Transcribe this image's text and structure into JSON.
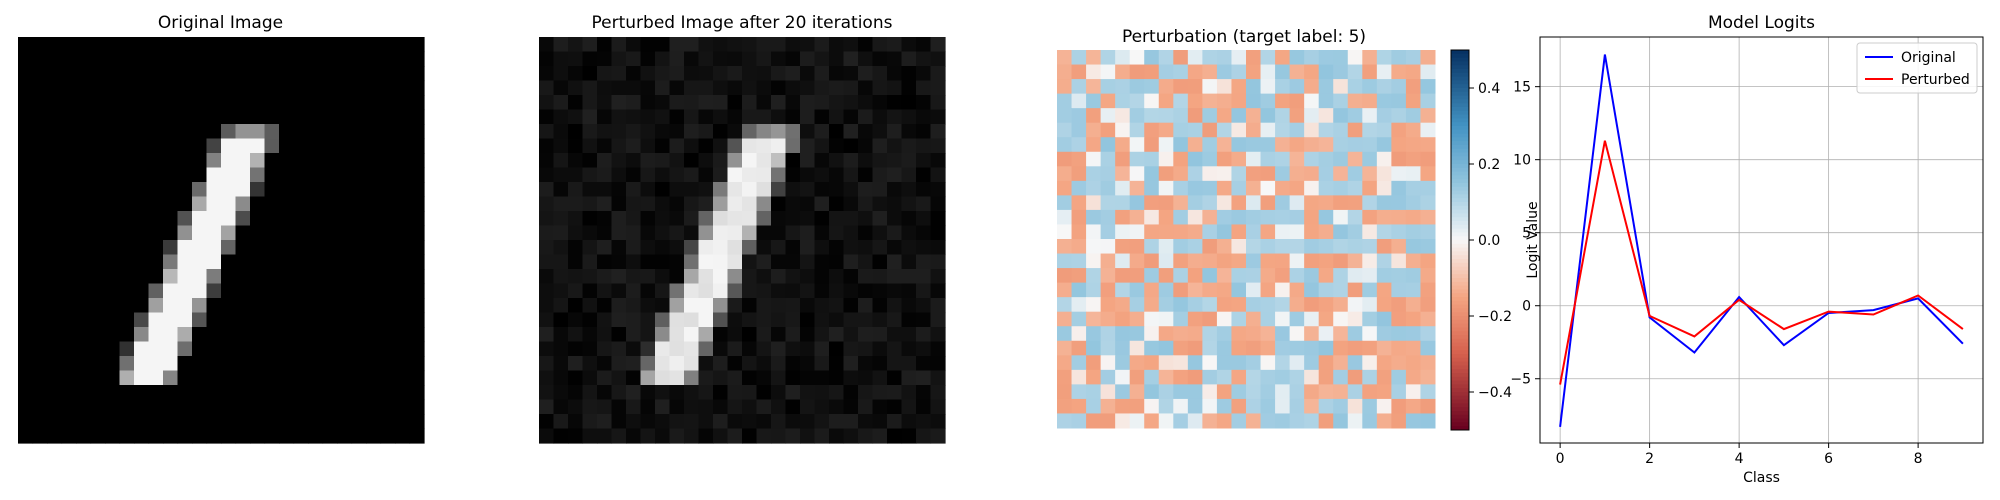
{
  "panels": {
    "original": {
      "title": "Original Image"
    },
    "perturbed": {
      "title": "Perturbed Image after 20 iterations"
    },
    "perturbation": {
      "title": "Perturbation (target label: 5)"
    },
    "logits": {
      "title": "Model Logits"
    }
  },
  "chart_data": [
    {
      "type": "heatmap",
      "title": "Original Image",
      "grid_size": [
        28,
        28
      ],
      "colormap": "gray",
      "content": "handwritten digit 1"
    },
    {
      "type": "heatmap",
      "title": "Perturbed Image after 20 iterations",
      "grid_size": [
        28,
        28
      ],
      "colormap": "gray",
      "content": "handwritten digit 1 with small noise"
    },
    {
      "type": "heatmap",
      "title": "Perturbation (target label: 5)",
      "grid_size": [
        26,
        26
      ],
      "colormap": "RdBu",
      "colorbar": {
        "range": [
          -0.5,
          0.5
        ],
        "ticks": [
          0.4,
          0.2,
          0.0,
          -0.2,
          -0.4
        ],
        "tick_labels": [
          "0.4",
          "0.2",
          "0.0",
          "−0.2",
          "−0.4"
        ]
      }
    },
    {
      "type": "line",
      "title": "Model Logits",
      "xlabel": "Class",
      "ylabel": "Logit Value",
      "x": [
        0,
        1,
        2,
        3,
        4,
        5,
        6,
        7,
        8,
        9
      ],
      "xticks": [
        0,
        2,
        4,
        6,
        8
      ],
      "yticks": [
        15,
        10,
        5,
        0,
        -5
      ],
      "ytick_labels": [
        "15",
        "10",
        "5",
        "0",
        "−5"
      ],
      "xlim": [
        -0.45,
        9.45
      ],
      "ylim": [
        -9.4,
        18.4
      ],
      "grid": true,
      "legend": "top-right",
      "series": [
        {
          "name": "Original",
          "color": "#0000ff",
          "values": [
            -8.3,
            17.2,
            -0.8,
            -3.2,
            0.6,
            -2.7,
            -0.5,
            -0.3,
            0.5,
            -2.6
          ]
        },
        {
          "name": "Perturbed",
          "color": "#ff0000",
          "values": [
            -5.4,
            11.3,
            -0.7,
            -2.1,
            0.4,
            -1.6,
            -0.4,
            -0.6,
            0.7,
            -1.6
          ]
        }
      ]
    }
  ]
}
